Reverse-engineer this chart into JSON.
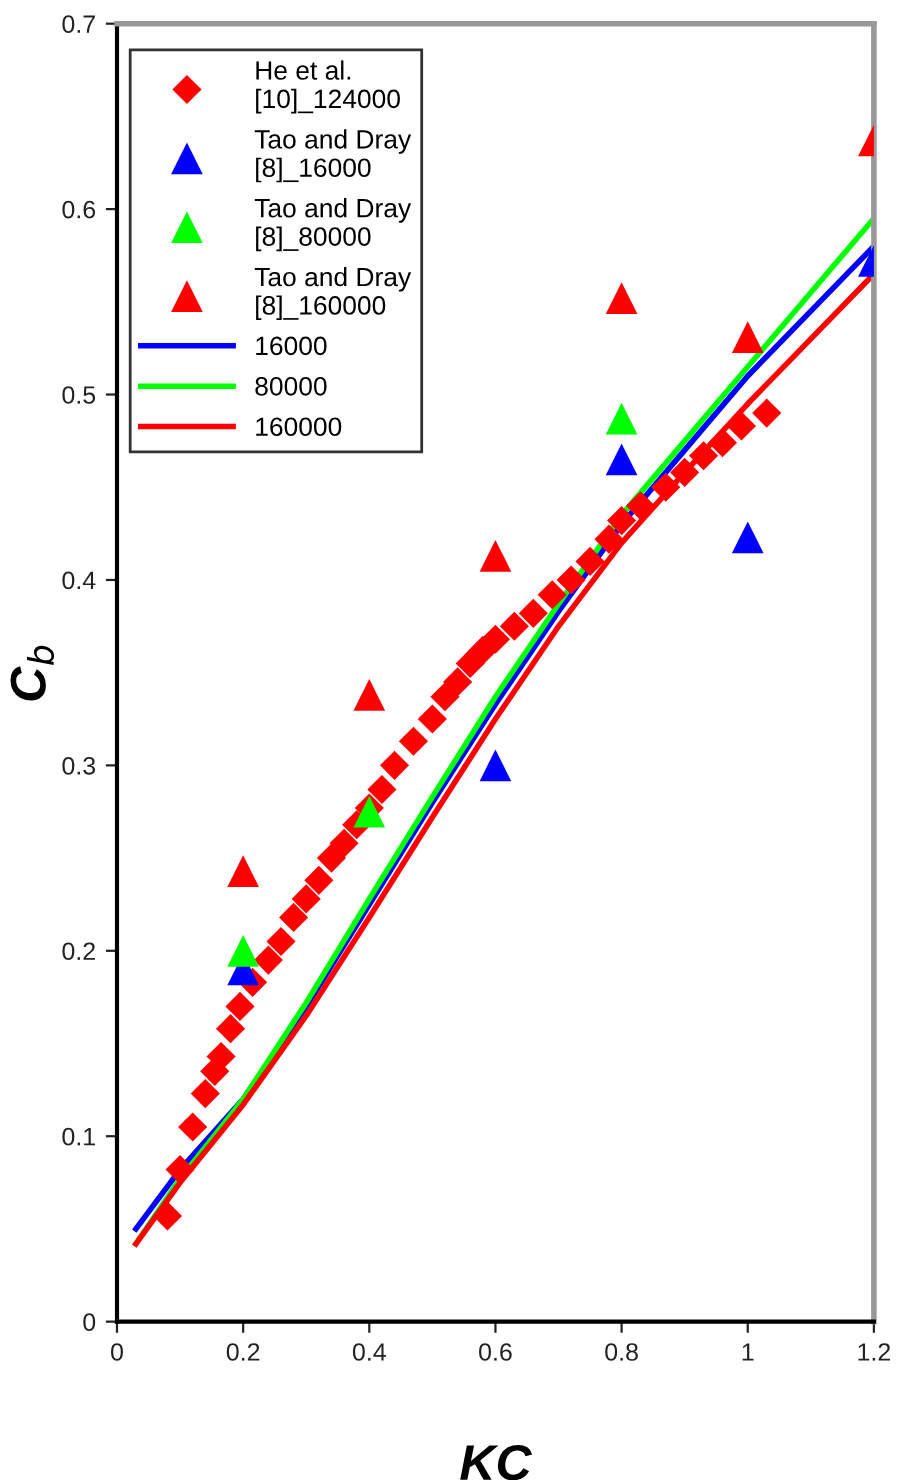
{
  "chart_data": {
    "type": "scatter",
    "xlabel": "KC",
    "ylabel": "C$_{b}$",
    "xlim": [
      0,
      1.2
    ],
    "ylim": [
      0,
      0.7
    ],
    "xticks": [
      0,
      0.2,
      0.4,
      0.6,
      0.8,
      1,
      1.2
    ],
    "yticks": [
      0,
      0.1,
      0.2,
      0.3,
      0.4,
      0.5,
      0.6,
      0.7
    ],
    "grid": false,
    "legend": "top left",
    "series": [
      {
        "name": "He et al. [10]_124000",
        "color": "#ff0000",
        "marker": "diamond",
        "x": [
          0.08,
          0.1,
          0.12,
          0.14,
          0.155,
          0.165,
          0.18,
          0.195,
          0.215,
          0.24,
          0.26,
          0.28,
          0.3,
          0.32,
          0.34,
          0.36,
          0.38,
          0.4,
          0.42,
          0.44,
          0.47,
          0.5,
          0.52,
          0.54,
          0.56,
          0.58,
          0.6,
          0.63,
          0.66,
          0.69,
          0.72,
          0.75,
          0.78,
          0.8,
          0.83,
          0.87,
          0.9,
          0.93,
          0.96,
          0.99,
          1.03
        ],
        "values": [
          0.057,
          0.082,
          0.105,
          0.123,
          0.135,
          0.143,
          0.158,
          0.17,
          0.183,
          0.195,
          0.205,
          0.218,
          0.228,
          0.238,
          0.25,
          0.258,
          0.268,
          0.277,
          0.287,
          0.3,
          0.313,
          0.325,
          0.337,
          0.345,
          0.355,
          0.362,
          0.368,
          0.375,
          0.382,
          0.392,
          0.4,
          0.41,
          0.422,
          0.432,
          0.44,
          0.45,
          0.458,
          0.467,
          0.474,
          0.483,
          0.49
        ]
      },
      {
        "name": "Tao and Dray [8]_16000",
        "color": "#0000ff",
        "marker": "triangle",
        "x": [
          0.2,
          0.6,
          0.8,
          1.0,
          1.2
        ],
        "values": [
          0.19,
          0.3,
          0.465,
          0.423,
          0.572
        ]
      },
      {
        "name": "Tao and Dray [8]_80000",
        "color": "#00ff00",
        "marker": "triangle",
        "x": [
          0.2,
          0.4,
          0.8
        ],
        "values": [
          0.2,
          0.275,
          0.487
        ]
      },
      {
        "name": "Tao and Dray [8]_160000",
        "color": "#ff0000",
        "marker": "triangle",
        "x": [
          0.2,
          0.4,
          0.6,
          0.8,
          1.0,
          1.2
        ],
        "values": [
          0.243,
          0.338,
          0.413,
          0.552,
          0.531,
          0.637
        ]
      },
      {
        "name": "16000",
        "type": "line",
        "color": "#0000ff",
        "marker": "none",
        "x": [
          0.03,
          0.1,
          0.2,
          0.3,
          0.4,
          0.5,
          0.6,
          0.7,
          0.8,
          0.9,
          1.0,
          1.1,
          1.2
        ],
        "values": [
          0.05,
          0.082,
          0.12,
          0.17,
          0.225,
          0.28,
          0.333,
          0.383,
          0.43,
          0.47,
          0.51,
          0.545,
          0.58
        ]
      },
      {
        "name": "80000",
        "type": "line",
        "color": "#00ff00",
        "marker": "none",
        "x": [
          0.03,
          0.1,
          0.2,
          0.3,
          0.4,
          0.5,
          0.6,
          0.7,
          0.8,
          0.9,
          1.0,
          1.1,
          1.2
        ],
        "values": [
          0.042,
          0.077,
          0.12,
          0.172,
          0.228,
          0.283,
          0.337,
          0.387,
          0.435,
          0.475,
          0.515,
          0.555,
          0.595
        ]
      },
      {
        "name": "160000",
        "type": "line",
        "color": "#ff0000",
        "marker": "none",
        "x": [
          0.03,
          0.1,
          0.2,
          0.3,
          0.4,
          0.5,
          0.6,
          0.7,
          0.8,
          0.9,
          1.0,
          1.1,
          1.2
        ],
        "values": [
          0.042,
          0.075,
          0.117,
          0.165,
          0.218,
          0.272,
          0.325,
          0.375,
          0.42,
          0.458,
          0.495,
          0.53,
          0.565
        ]
      }
    ]
  }
}
